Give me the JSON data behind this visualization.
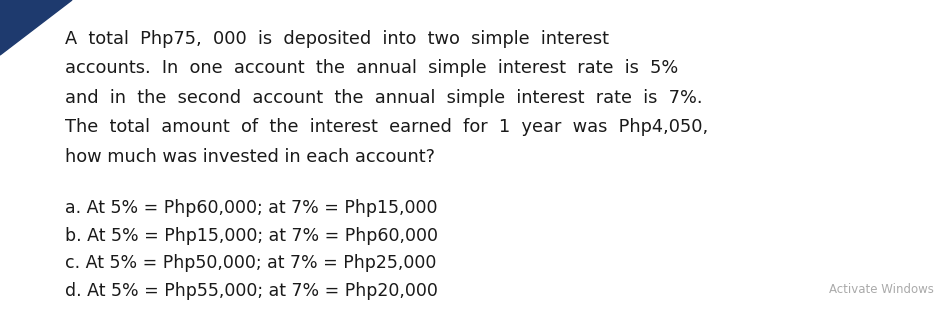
{
  "background_color": "#ffffff",
  "paragraph_lines": [
    "A  total  Php75,  000  is  deposited  into  two  simple  interest",
    "accounts.  In  one  account  the  annual  simple  interest  rate  is  5%",
    "and  in  the  second  account  the  annual  simple  interest  rate  is  7%.",
    "The  total  amount  of  the  interest  earned  for  1  year  was  Php4,050,",
    "how much was invested in each account?"
  ],
  "choices": [
    "a. At 5% = Php60,000; at 7% = Php15,000",
    "b. At 5% = Php15,000; at 7% = Php60,000",
    "c. At 5% = Php50,000; at 7% = Php25,000",
    "d. At 5% = Php55,000; at 7% = Php20,000"
  ],
  "watermark": "Activate Windows",
  "text_color": "#1a1a1a",
  "watermark_color": "#aaaaaa",
  "font_size_paragraph": 12.8,
  "font_size_choices": 12.5,
  "font_size_watermark": 8.5,
  "triangle_color": "#1e3a6e",
  "fig_width": 9.46,
  "fig_height": 3.32,
  "dpi": 100
}
